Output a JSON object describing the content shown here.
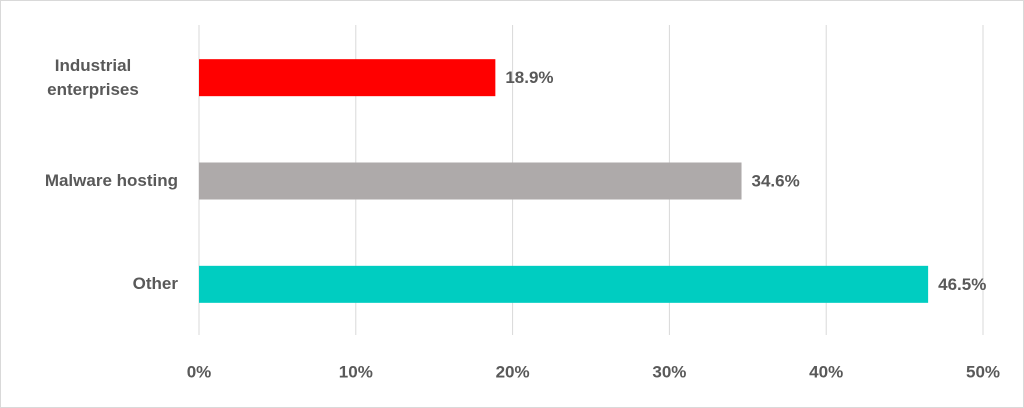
{
  "chart_data": {
    "type": "bar",
    "orientation": "horizontal",
    "categories": [
      "Industrial enterprises",
      "Malware hosting",
      "Other"
    ],
    "values": [
      18.9,
      34.6,
      46.5
    ],
    "value_labels": [
      "18.9%",
      "34.6%",
      "46.5%"
    ],
    "colors": [
      "#ff0000",
      "#aeaaaa",
      "#00cdc1"
    ],
    "xlim": [
      0,
      50
    ],
    "xticks": [
      {
        "value": 0,
        "label": "0%"
      },
      {
        "value": 10,
        "label": "10%"
      },
      {
        "value": 20,
        "label": "20%"
      },
      {
        "value": 30,
        "label": "30%"
      },
      {
        "value": 40,
        "label": "40%"
      },
      {
        "value": 50,
        "label": "50%"
      }
    ],
    "grid": true
  }
}
